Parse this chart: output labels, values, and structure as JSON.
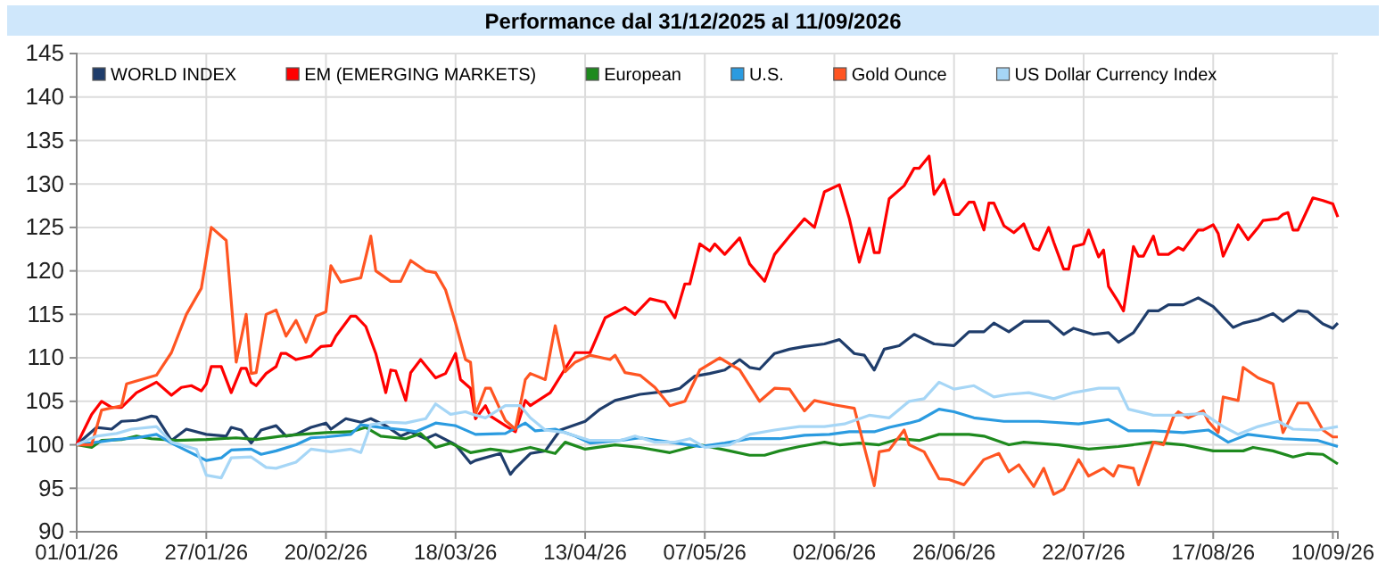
{
  "chart_data": {
    "type": "line",
    "title": "Performance dal 31/12/2025 al 11/09/2026",
    "legend": "top",
    "grid": true,
    "ylim": [
      90,
      145
    ],
    "yticks": [
      90,
      95,
      100,
      105,
      110,
      115,
      120,
      125,
      130,
      135,
      140,
      145
    ],
    "xlim": [
      "2026-01-01",
      "2026-09-11"
    ],
    "xticks": [
      {
        "value": "2026-01-01",
        "label": "01/01/26"
      },
      {
        "value": "2026-01-27",
        "label": "27/01/26"
      },
      {
        "value": "2026-02-20",
        "label": "20/02/26"
      },
      {
        "value": "2026-03-18",
        "label": "18/03/26"
      },
      {
        "value": "2026-04-13",
        "label": "13/04/26"
      },
      {
        "value": "2026-05-07",
        "label": "07/05/26"
      },
      {
        "value": "2026-06-02",
        "label": "02/06/26"
      },
      {
        "value": "2026-06-26",
        "label": "26/06/26"
      },
      {
        "value": "2026-07-22",
        "label": "22/07/26"
      },
      {
        "value": "2026-08-17",
        "label": "17/08/26"
      },
      {
        "value": "2026-09-10",
        "label": "10/09/26"
      }
    ],
    "series": [
      {
        "name": "WORLD INDEX",
        "color": "#1f3d6b",
        "x": [
          "2026-01-01",
          "2026-01-05",
          "2026-01-08",
          "2026-01-10",
          "2026-01-13",
          "2026-01-16",
          "2026-01-17",
          "2026-01-20",
          "2026-01-23",
          "2026-01-27",
          "2026-01-31",
          "2026-02-01",
          "2026-02-03",
          "2026-02-05",
          "2026-02-07",
          "2026-02-10",
          "2026-02-12",
          "2026-02-14",
          "2026-02-17",
          "2026-02-20",
          "2026-02-21",
          "2026-02-24",
          "2026-02-27",
          "2026-03-01",
          "2026-03-04",
          "2026-03-07",
          "2026-03-09",
          "2026-03-12",
          "2026-03-14",
          "2026-03-18",
          "2026-03-21",
          "2026-03-22",
          "2026-03-27",
          "2026-03-29",
          "2026-03-30",
          "2026-04-02",
          "2026-04-05",
          "2026-04-08",
          "2026-04-13",
          "2026-04-16",
          "2026-04-19",
          "2026-04-24",
          "2026-04-30",
          "2026-05-02",
          "2026-05-05",
          "2026-05-08",
          "2026-05-11",
          "2026-05-14",
          "2026-05-16",
          "2026-05-18",
          "2026-05-21",
          "2026-05-24",
          "2026-05-27",
          "2026-05-31",
          "2026-06-03",
          "2026-06-06",
          "2026-06-08",
          "2026-06-10",
          "2026-06-12",
          "2026-06-15",
          "2026-06-18",
          "2026-06-22",
          "2026-06-26",
          "2026-06-29",
          "2026-07-02",
          "2026-07-04",
          "2026-07-07",
          "2026-07-10",
          "2026-07-15",
          "2026-07-18",
          "2026-07-20",
          "2026-07-24",
          "2026-07-27",
          "2026-07-29",
          "2026-08-01",
          "2026-08-04",
          "2026-08-06",
          "2026-08-08",
          "2026-08-11",
          "2026-08-14",
          "2026-08-17",
          "2026-08-21",
          "2026-08-23",
          "2026-08-26",
          "2026-08-29",
          "2026-08-31",
          "2026-09-03",
          "2026-09-05",
          "2026-09-08",
          "2026-09-10",
          "2026-09-11"
        ],
        "values": [
          100,
          102,
          101.8,
          102.7,
          102.8,
          103.3,
          103.2,
          100.5,
          101.8,
          101.2,
          101,
          102,
          101.7,
          100.2,
          101.7,
          102.2,
          101,
          101.2,
          102,
          102.5,
          101.8,
          103,
          102.6,
          103,
          102.2,
          101,
          101.5,
          100.7,
          101.2,
          100,
          97.9,
          98.2,
          99,
          96.6,
          97.3,
          99,
          99.3,
          101.7,
          102.7,
          104.1,
          105.1,
          105.8,
          106.2,
          106.5,
          107.9,
          108.2,
          108.6,
          109.8,
          108.9,
          108.7,
          110.5,
          111,
          111.3,
          111.6,
          112.1,
          110.5,
          110.3,
          108.6,
          111,
          111.4,
          112.7,
          111.6,
          111.4,
          113,
          113,
          114,
          113,
          114.2,
          114.2,
          112.7,
          113.4,
          112.7,
          112.9,
          111.8,
          112.9,
          115.4,
          115.4,
          116.1,
          116.1,
          116.9,
          115.9,
          113.5,
          114,
          114.4,
          115.1,
          114.2,
          115.4,
          115.3,
          113.9,
          113.4,
          114
        ]
      },
      {
        "name": "EM (EMERGING MARKETS)",
        "color": "#ff0000",
        "x": [
          "2026-01-01",
          "2026-01-04",
          "2026-01-06",
          "2026-01-08",
          "2026-01-10",
          "2026-01-13",
          "2026-01-17",
          "2026-01-20",
          "2026-01-22",
          "2026-01-24",
          "2026-01-26",
          "2026-01-27",
          "2026-01-28",
          "2026-01-30",
          "2026-02-01",
          "2026-02-03",
          "2026-02-04",
          "2026-02-05",
          "2026-02-06",
          "2026-02-08",
          "2026-02-10",
          "2026-02-11",
          "2026-02-12",
          "2026-02-14",
          "2026-02-17",
          "2026-02-18",
          "2026-02-19",
          "2026-02-21",
          "2026-02-22",
          "2026-02-25",
          "2026-02-26",
          "2026-02-28",
          "2026-03-02",
          "2026-03-04",
          "2026-03-05",
          "2026-03-06",
          "2026-03-08",
          "2026-03-09",
          "2026-03-11",
          "2026-03-14",
          "2026-03-16",
          "2026-03-18",
          "2026-03-19",
          "2026-03-21",
          "2026-03-22",
          "2026-03-24",
          "2026-03-25",
          "2026-03-28",
          "2026-03-30",
          "2026-04-01",
          "2026-04-02",
          "2026-04-06",
          "2026-04-11",
          "2026-04-14",
          "2026-04-17",
          "2026-04-21",
          "2026-04-23",
          "2026-04-26",
          "2026-04-29",
          "2026-05-01",
          "2026-05-03",
          "2026-05-04",
          "2026-05-06",
          "2026-05-08",
          "2026-05-09",
          "2026-05-11",
          "2026-05-14",
          "2026-05-16",
          "2026-05-19",
          "2026-05-21",
          "2026-05-24",
          "2026-05-27",
          "2026-05-29",
          "2026-05-31",
          "2026-06-03",
          "2026-06-05",
          "2026-06-07",
          "2026-06-09",
          "2026-06-10",
          "2026-06-11",
          "2026-06-13",
          "2026-06-16",
          "2026-06-18",
          "2026-06-19",
          "2026-06-21",
          "2026-06-22",
          "2026-06-24",
          "2026-06-26",
          "2026-06-27",
          "2026-06-29",
          "2026-06-30",
          "2026-07-02",
          "2026-07-03",
          "2026-07-04",
          "2026-07-06",
          "2026-07-08",
          "2026-07-10",
          "2026-07-12",
          "2026-07-13",
          "2026-07-15",
          "2026-07-16",
          "2026-07-18",
          "2026-07-19",
          "2026-07-20",
          "2026-07-22",
          "2026-07-23",
          "2026-07-25",
          "2026-07-26",
          "2026-07-27",
          "2026-07-29",
          "2026-07-30",
          "2026-08-01",
          "2026-08-02",
          "2026-08-03",
          "2026-08-05",
          "2026-08-06",
          "2026-08-08",
          "2026-08-10",
          "2026-08-11",
          "2026-08-14",
          "2026-08-15",
          "2026-08-17",
          "2026-08-18",
          "2026-08-19",
          "2026-08-22",
          "2026-08-24",
          "2026-08-26",
          "2026-08-27",
          "2026-08-30",
          "2026-08-31",
          "2026-09-01",
          "2026-09-02",
          "2026-09-03",
          "2026-09-06",
          "2026-09-08",
          "2026-09-10",
          "2026-09-11"
        ],
        "values": [
          100,
          103.5,
          105,
          104.3,
          104.3,
          106,
          107.2,
          105.7,
          106.6,
          106.8,
          106.2,
          107,
          109,
          109,
          106,
          108.8,
          108.8,
          107.2,
          106.8,
          108.2,
          109,
          110.5,
          110.5,
          109.8,
          110.2,
          110.8,
          111.3,
          111.4,
          112.5,
          114.8,
          114.8,
          113.6,
          110.5,
          106,
          108.6,
          108.5,
          105.1,
          108.3,
          109.8,
          107.7,
          108.2,
          110.5,
          107.5,
          106.5,
          103,
          104.5,
          103.3,
          102.2,
          101.5,
          105.1,
          104.5,
          106,
          110.6,
          110.6,
          114.6,
          115.8,
          115,
          116.8,
          116.4,
          114.6,
          118.5,
          118.5,
          123.1,
          122.3,
          123.1,
          121.9,
          123.8,
          120.8,
          118.8,
          121.9,
          124,
          126,
          125,
          129.1,
          129.9,
          126,
          121,
          124.9,
          122.1,
          122.1,
          128.3,
          129.8,
          131.8,
          131.8,
          133.2,
          128.8,
          130.5,
          126.5,
          126.5,
          127.9,
          127.9,
          124.7,
          127.8,
          127.8,
          125.2,
          124.4,
          125.4,
          122.6,
          122.4,
          125,
          123.3,
          120.2,
          120.2,
          122.8,
          123.1,
          124.7,
          121.6,
          122.4,
          118.2,
          116.4,
          115.4,
          122.8,
          121.7,
          121.7,
          124,
          121.9,
          121.9,
          122.7,
          122.4,
          124.7,
          124.7,
          125.3,
          124.3,
          121.7,
          125.3,
          123.6,
          125,
          125.8,
          126,
          126.5,
          126.7,
          124.7,
          124.7,
          128.4,
          128.1,
          127.7,
          126.2
        ]
      },
      {
        "name": "European",
        "color": "#1e8a1e",
        "x": [
          "2026-01-01",
          "2026-01-04",
          "2026-01-06",
          "2026-01-10",
          "2026-01-13",
          "2026-01-16",
          "2026-01-21",
          "2026-01-27",
          "2026-02-02",
          "2026-02-06",
          "2026-02-11",
          "2026-02-15",
          "2026-02-20",
          "2026-02-25",
          "2026-02-28",
          "2026-03-03",
          "2026-03-08",
          "2026-03-11",
          "2026-03-14",
          "2026-03-17",
          "2026-03-21",
          "2026-03-25",
          "2026-03-29",
          "2026-04-02",
          "2026-04-07",
          "2026-04-09",
          "2026-04-13",
          "2026-04-19",
          "2026-04-24",
          "2026-04-30",
          "2026-05-06",
          "2026-05-12",
          "2026-05-16",
          "2026-05-19",
          "2026-05-22",
          "2026-05-26",
          "2026-05-31",
          "2026-06-03",
          "2026-06-07",
          "2026-06-11",
          "2026-06-15",
          "2026-06-19",
          "2026-06-23",
          "2026-06-29",
          "2026-07-02",
          "2026-07-07",
          "2026-07-10",
          "2026-07-17",
          "2026-07-23",
          "2026-07-29",
          "2026-08-05",
          "2026-08-11",
          "2026-08-17",
          "2026-08-23",
          "2026-08-25",
          "2026-08-29",
          "2026-09-02",
          "2026-09-05",
          "2026-09-08",
          "2026-09-11"
        ],
        "values": [
          100,
          99.7,
          100.5,
          100.6,
          101,
          100.7,
          100.5,
          100.6,
          100.8,
          100.6,
          101,
          101.2,
          101.4,
          101.5,
          102,
          101,
          100.7,
          101.3,
          99.7,
          100.2,
          99.1,
          99.5,
          99.2,
          99.7,
          99,
          100.3,
          99.5,
          100,
          99.7,
          99.1,
          100,
          99.3,
          98.8,
          98.8,
          99.3,
          99.8,
          100.3,
          100,
          100.2,
          100,
          100.7,
          100.5,
          101.2,
          101.2,
          101,
          100,
          100.3,
          100,
          99.5,
          99.8,
          100.3,
          100,
          99.3,
          99.3,
          99.7,
          99.3,
          98.6,
          99,
          98.9,
          97.8
        ]
      },
      {
        "name": "U.S.",
        "color": "#2b9be0",
        "x": [
          "2026-01-01",
          "2026-01-05",
          "2026-01-09",
          "2026-01-13",
          "2026-01-17",
          "2026-01-20",
          "2026-01-27",
          "2026-01-30",
          "2026-02-01",
          "2026-02-05",
          "2026-02-07",
          "2026-02-10",
          "2026-02-14",
          "2026-02-17",
          "2026-02-20",
          "2026-02-25",
          "2026-02-27",
          "2026-03-03",
          "2026-03-08",
          "2026-03-10",
          "2026-03-14",
          "2026-03-18",
          "2026-03-22",
          "2026-03-28",
          "2026-04-01",
          "2026-04-03",
          "2026-04-07",
          "2026-04-11",
          "2026-04-14",
          "2026-04-20",
          "2026-04-24",
          "2026-04-30",
          "2026-05-06",
          "2026-05-11",
          "2026-05-16",
          "2026-05-22",
          "2026-05-27",
          "2026-06-01",
          "2026-06-05",
          "2026-06-10",
          "2026-06-13",
          "2026-06-17",
          "2026-06-19",
          "2026-06-23",
          "2026-06-26",
          "2026-06-30",
          "2026-07-06",
          "2026-07-13",
          "2026-07-21",
          "2026-07-27",
          "2026-07-31",
          "2026-08-05",
          "2026-08-11",
          "2026-08-16",
          "2026-08-20",
          "2026-08-24",
          "2026-08-31",
          "2026-09-07",
          "2026-09-11"
        ],
        "values": [
          100,
          100.3,
          100.6,
          100.8,
          101.2,
          100.2,
          98.2,
          98.5,
          99.4,
          99.5,
          98.9,
          99.3,
          100,
          100.8,
          100.9,
          101.2,
          102.3,
          102,
          101.7,
          101.5,
          102.5,
          102.2,
          101.2,
          101.3,
          102.5,
          101.6,
          101.8,
          101,
          100.2,
          100.5,
          100.8,
          100.3,
          99.8,
          100.2,
          100.7,
          100.7,
          101.1,
          101.2,
          101.5,
          101.5,
          102,
          102.5,
          102.8,
          104.1,
          103.8,
          103.1,
          102.7,
          102.7,
          102.4,
          102.9,
          101.6,
          101.6,
          101.4,
          101.7,
          100.3,
          101.2,
          100.7,
          100.5,
          99.8
        ]
      },
      {
        "name": "Gold Ounce",
        "color": "#ff5522",
        "x": [
          "2026-01-01",
          "2026-01-04",
          "2026-01-06",
          "2026-01-10",
          "2026-01-11",
          "2026-01-17",
          "2026-01-20",
          "2026-01-23",
          "2026-01-26",
          "2026-01-28",
          "2026-01-31",
          "2026-02-02",
          "2026-02-04",
          "2026-02-05",
          "2026-02-06",
          "2026-02-08",
          "2026-02-10",
          "2026-02-12",
          "2026-02-14",
          "2026-02-16",
          "2026-02-18",
          "2026-02-20",
          "2026-02-21",
          "2026-02-23",
          "2026-02-27",
          "2026-03-01",
          "2026-03-02",
          "2026-03-05",
          "2026-03-07",
          "2026-03-09",
          "2026-03-12",
          "2026-03-14",
          "2026-03-16",
          "2026-03-18",
          "2026-03-20",
          "2026-03-21",
          "2026-03-22",
          "2026-03-24",
          "2026-03-25",
          "2026-03-27",
          "2026-03-28",
          "2026-03-30",
          "2026-04-01",
          "2026-04-02",
          "2026-04-05",
          "2026-04-07",
          "2026-04-09",
          "2026-04-11",
          "2026-04-14",
          "2026-04-18",
          "2026-04-19",
          "2026-04-21",
          "2026-04-24",
          "2026-04-27",
          "2026-04-30",
          "2026-05-03",
          "2026-05-06",
          "2026-05-10",
          "2026-05-14",
          "2026-05-18",
          "2026-05-21",
          "2026-05-24",
          "2026-05-27",
          "2026-05-29",
          "2026-06-02",
          "2026-06-06",
          "2026-06-10",
          "2026-06-11",
          "2026-06-13",
          "2026-06-16",
          "2026-06-17",
          "2026-06-20",
          "2026-06-23",
          "2026-06-25",
          "2026-06-28",
          "2026-07-02",
          "2026-07-05",
          "2026-07-07",
          "2026-07-09",
          "2026-07-12",
          "2026-07-14",
          "2026-07-16",
          "2026-07-18",
          "2026-07-21",
          "2026-07-23",
          "2026-07-26",
          "2026-07-28",
          "2026-07-29",
          "2026-08-01",
          "2026-08-02",
          "2026-08-05",
          "2026-08-07",
          "2026-08-09",
          "2026-08-10",
          "2026-08-12",
          "2026-08-15",
          "2026-08-16",
          "2026-08-18",
          "2026-08-19",
          "2026-08-22",
          "2026-08-23",
          "2026-08-26",
          "2026-08-29",
          "2026-08-31",
          "2026-09-03",
          "2026-09-05",
          "2026-09-08",
          "2026-09-10",
          "2026-09-11"
        ],
        "values": [
          100,
          100,
          104,
          104.5,
          107,
          108,
          110.6,
          115,
          118,
          125,
          123.5,
          109.5,
          115,
          108.2,
          108.3,
          115,
          115.5,
          112.5,
          114.3,
          111.8,
          114.8,
          115.3,
          120.6,
          118.7,
          119.2,
          124,
          120,
          118.8,
          118.8,
          121.2,
          120,
          119.8,
          117.8,
          114,
          109.8,
          109.5,
          103.5,
          106.5,
          106.5,
          104,
          102.8,
          101.8,
          107.5,
          108.2,
          107.5,
          113.7,
          108.4,
          109.5,
          110.3,
          109.8,
          110.3,
          108.3,
          108,
          106.6,
          104.5,
          105,
          108.6,
          110,
          108.6,
          105,
          106.5,
          106.4,
          103.9,
          105.1,
          104.6,
          104.2,
          95.3,
          99.2,
          99.4,
          101.7,
          100,
          99.2,
          96.1,
          96,
          95.4,
          98.3,
          99,
          96.9,
          97.7,
          95.2,
          97.3,
          94.3,
          94.9,
          98.3,
          96.4,
          97.3,
          96.4,
          97.6,
          97.3,
          95.4,
          100.3,
          100,
          103.2,
          103.8,
          103.1,
          103.9,
          102.7,
          101.4,
          105.5,
          105.1,
          108.9,
          107.7,
          107,
          101.4,
          104.8,
          104.8,
          101.7,
          100.9,
          100.9
        ]
      },
      {
        "name": "US Dollar Currency Index",
        "color": "#a6d6f6",
        "x": [
          "2026-01-01",
          "2026-01-05",
          "2026-01-09",
          "2026-01-12",
          "2026-01-17",
          "2026-01-20",
          "2026-01-25",
          "2026-01-27",
          "2026-01-30",
          "2026-02-01",
          "2026-02-05",
          "2026-02-08",
          "2026-02-10",
          "2026-02-14",
          "2026-02-17",
          "2026-02-21",
          "2026-02-25",
          "2026-02-27",
          "2026-03-01",
          "2026-03-04",
          "2026-03-08",
          "2026-03-12",
          "2026-03-14",
          "2026-03-17",
          "2026-03-20",
          "2026-03-22",
          "2026-03-24",
          "2026-03-28",
          "2026-03-31",
          "2026-04-02",
          "2026-04-05",
          "2026-04-09",
          "2026-04-14",
          "2026-04-20",
          "2026-04-23",
          "2026-04-27",
          "2026-05-01",
          "2026-05-04",
          "2026-05-07",
          "2026-05-12",
          "2026-05-16",
          "2026-05-21",
          "2026-05-26",
          "2026-05-31",
          "2026-06-04",
          "2026-06-09",
          "2026-06-13",
          "2026-06-17",
          "2026-06-20",
          "2026-06-23",
          "2026-06-26",
          "2026-06-30",
          "2026-07-04",
          "2026-07-07",
          "2026-07-11",
          "2026-07-16",
          "2026-07-20",
          "2026-07-25",
          "2026-07-29",
          "2026-07-31",
          "2026-08-05",
          "2026-08-10",
          "2026-08-15",
          "2026-08-19",
          "2026-08-22",
          "2026-08-26",
          "2026-08-30",
          "2026-09-02",
          "2026-09-07",
          "2026-09-11"
        ],
        "values": [
          100,
          101,
          101.3,
          101.8,
          102.1,
          100.3,
          99.5,
          96.5,
          96.2,
          98.5,
          98.6,
          97.4,
          97.3,
          98,
          99.5,
          99.2,
          99.5,
          99.1,
          102.3,
          102.6,
          102.5,
          103,
          104.7,
          103.5,
          103.8,
          103.4,
          103.1,
          104.5,
          104.5,
          103.1,
          101.7,
          101.4,
          100.5,
          100.5,
          101,
          100.3,
          100.3,
          100.7,
          99.7,
          100,
          101.2,
          101.7,
          102.1,
          102.1,
          102.4,
          103.4,
          103.1,
          105,
          105.3,
          107.2,
          106.4,
          106.8,
          105.5,
          105.8,
          106,
          105.3,
          106,
          106.5,
          106.5,
          104.1,
          103.4,
          103.4,
          103.6,
          102.1,
          101.2,
          102.1,
          102.7,
          101.8,
          101.7,
          102.1
        ]
      }
    ]
  }
}
